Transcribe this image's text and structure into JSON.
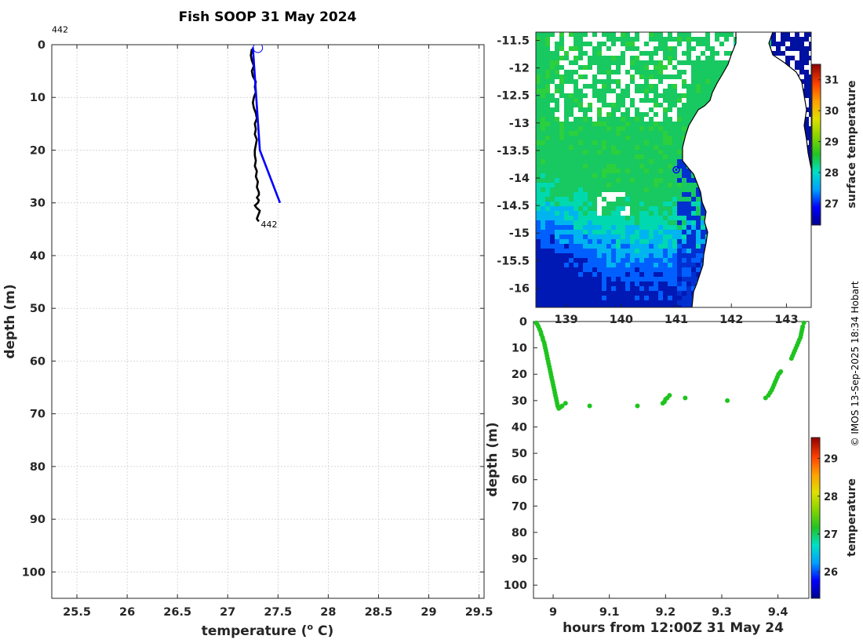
{
  "title": "Fish SOOP 31 May 2024",
  "credit": "© IMOS 13-Sep-2025 18:34 Hobart",
  "colors": {
    "profile_black": "#000000",
    "profile_blue": "#0000ff",
    "track_green": "#1fc41f",
    "land": "#ffffff",
    "coast": "#000000"
  },
  "chart_data": [
    {
      "type": "line",
      "name": "temperature-profile",
      "xlabel": "temperature (",
      "xlabel_sup": "o",
      "xlabel_end": " C)",
      "ylabel": "depth (m)",
      "xlim": [
        25.25,
        29.55
      ],
      "ylim": [
        0,
        105
      ],
      "xticks": [
        25.5,
        26,
        26.5,
        27,
        27.5,
        28,
        28.5,
        29,
        29.5
      ],
      "xtick_labels": [
        "25.5",
        "26",
        "26.5",
        "27",
        "27.5",
        "28",
        "28.5",
        "29",
        "29.5"
      ],
      "yticks": [
        0,
        10,
        20,
        30,
        40,
        50,
        60,
        70,
        80,
        90,
        100
      ],
      "ytick_labels": [
        "0",
        "10",
        "20",
        "30",
        "40",
        "50",
        "60",
        "70",
        "80",
        "90",
        "100"
      ],
      "annotations": [
        {
          "text": "442",
          "x": 25.25,
          "y": -2.3
        },
        {
          "text": "442",
          "x": 27.33,
          "y": 33.2
        }
      ],
      "series": [
        {
          "name": "profile-black",
          "color": "#000000",
          "x": [
            27.24,
            27.23,
            27.24,
            27.26,
            27.24,
            27.25,
            27.28,
            27.27,
            27.28,
            27.26,
            27.25,
            27.26,
            27.28,
            27.29,
            27.27,
            27.28,
            27.27,
            27.29,
            27.28,
            27.27,
            27.27,
            27.28,
            27.27,
            27.29,
            27.28,
            27.3,
            27.29,
            27.31,
            27.31,
            27.29,
            27.31,
            27.3,
            27.27,
            27.29,
            27.32,
            27.31,
            27.3,
            27.29,
            27.3,
            27.31
          ],
          "y": [
            0.8,
            2,
            3,
            4,
            5,
            6,
            7,
            8,
            9,
            10,
            11,
            12,
            13,
            14,
            15,
            16,
            17,
            18,
            19,
            20,
            21,
            22,
            23,
            24,
            25,
            26,
            27,
            28,
            28.5,
            29,
            29.5,
            30,
            30.5,
            31,
            31.5,
            32,
            32.5,
            33,
            33.3,
            33.5
          ]
        },
        {
          "name": "profile-blue",
          "color": "#0000ff",
          "x": [
            27.25,
            27.32,
            27.52
          ],
          "y": [
            0.5,
            20,
            30
          ]
        }
      ],
      "marker": {
        "name": "surface-circle",
        "x": 27.3,
        "y": 0.6
      }
    },
    {
      "type": "heatmap",
      "name": "surface-temperature-map",
      "xlim": [
        138.45,
        143.45
      ],
      "ylim": [
        -16.35,
        -11.35
      ],
      "xticks": [
        139,
        140,
        141,
        142,
        143
      ],
      "xtick_labels": [
        "139",
        "140",
        "141",
        "142",
        "143"
      ],
      "yticks": [
        -11.5,
        -12,
        -12.5,
        -13,
        -13.5,
        -14,
        -14.5,
        -15,
        -15.5,
        -16
      ],
      "ytick_labels": [
        "-11.5",
        "-12",
        "-12.5",
        "-13",
        "-13.5",
        "-14",
        "-14.5",
        "-15",
        "-15.5",
        "-16"
      ],
      "colorbar_label": "surface temperature",
      "colorbar_range": [
        26.3,
        31.5
      ],
      "colorbar_ticks": [
        27,
        28,
        29,
        30,
        31
      ],
      "colorbar_tick_labels": [
        "27",
        "28",
        "29",
        "30",
        "31"
      ],
      "marker": {
        "name": "vessel-location",
        "lon": 141.0,
        "lat": -13.85
      }
    },
    {
      "type": "scatter",
      "name": "depth-time-track",
      "xlabel": "hours from 12:00Z 31 May 24",
      "ylabel": "depth (m)",
      "xlim": [
        8.965,
        9.455
      ],
      "ylim": [
        0,
        105
      ],
      "xticks": [
        9,
        9.1,
        9.2,
        9.3,
        9.4
      ],
      "xtick_labels": [
        "9",
        "9.1",
        "9.2",
        "9.3",
        "9.4"
      ],
      "yticks": [
        0,
        10,
        20,
        30,
        40,
        50,
        60,
        70,
        80,
        90,
        100
      ],
      "ytick_labels": [
        "0",
        "10",
        "20",
        "30",
        "40",
        "50",
        "60",
        "70",
        "80",
        "90",
        "100"
      ],
      "colorbar_label": "temperature",
      "colorbar_range": [
        25.3,
        29.55
      ],
      "colorbar_ticks": [
        26,
        27,
        28,
        29
      ],
      "colorbar_tick_labels": [
        "26",
        "27",
        "28",
        "29"
      ],
      "color": "#1fc41f",
      "points": [
        [
          8.97,
          0.5
        ],
        [
          8.972,
          1.2
        ],
        [
          8.974,
          2
        ],
        [
          8.976,
          3
        ],
        [
          8.978,
          4
        ],
        [
          8.979,
          5
        ],
        [
          8.981,
          6
        ],
        [
          8.982,
          7
        ],
        [
          8.984,
          8
        ],
        [
          8.985,
          9
        ],
        [
          8.986,
          10
        ],
        [
          8.987,
          11
        ],
        [
          8.988,
          12
        ],
        [
          8.989,
          13
        ],
        [
          8.99,
          14
        ],
        [
          8.991,
          15
        ],
        [
          8.992,
          16
        ],
        [
          8.993,
          17
        ],
        [
          8.994,
          18
        ],
        [
          8.995,
          19
        ],
        [
          8.996,
          20
        ],
        [
          8.997,
          21
        ],
        [
          8.998,
          22
        ],
        [
          8.999,
          23
        ],
        [
          9.0,
          24
        ],
        [
          9.001,
          25
        ],
        [
          9.002,
          26
        ],
        [
          9.003,
          27
        ],
        [
          9.004,
          28
        ],
        [
          9.005,
          29
        ],
        [
          9.006,
          30
        ],
        [
          9.007,
          31
        ],
        [
          9.008,
          32
        ],
        [
          9.01,
          33
        ],
        [
          9.013,
          32.5
        ],
        [
          9.016,
          32
        ],
        [
          9.022,
          31
        ],
        [
          9.065,
          32
        ],
        [
          9.15,
          32
        ],
        [
          9.195,
          31
        ],
        [
          9.198,
          30.5
        ],
        [
          9.2,
          29.5
        ],
        [
          9.203,
          29
        ],
        [
          9.207,
          28
        ],
        [
          9.235,
          29
        ],
        [
          9.31,
          30
        ],
        [
          9.378,
          29
        ],
        [
          9.383,
          28
        ],
        [
          9.386,
          27
        ],
        [
          9.389,
          26
        ],
        [
          9.391,
          25
        ],
        [
          9.393,
          24
        ],
        [
          9.395,
          23
        ],
        [
          9.397,
          22
        ],
        [
          9.399,
          21
        ],
        [
          9.401,
          20
        ],
        [
          9.403,
          19.5
        ],
        [
          9.405,
          19
        ],
        [
          9.424,
          14
        ],
        [
          9.426,
          13
        ],
        [
          9.428,
          12
        ],
        [
          9.43,
          11
        ],
        [
          9.432,
          10
        ],
        [
          9.434,
          9
        ],
        [
          9.436,
          8
        ],
        [
          9.438,
          7
        ],
        [
          9.44,
          6
        ],
        [
          9.441,
          5
        ],
        [
          9.442,
          4
        ],
        [
          9.443,
          3
        ],
        [
          9.444,
          2
        ],
        [
          9.446,
          0.5
        ]
      ]
    }
  ]
}
